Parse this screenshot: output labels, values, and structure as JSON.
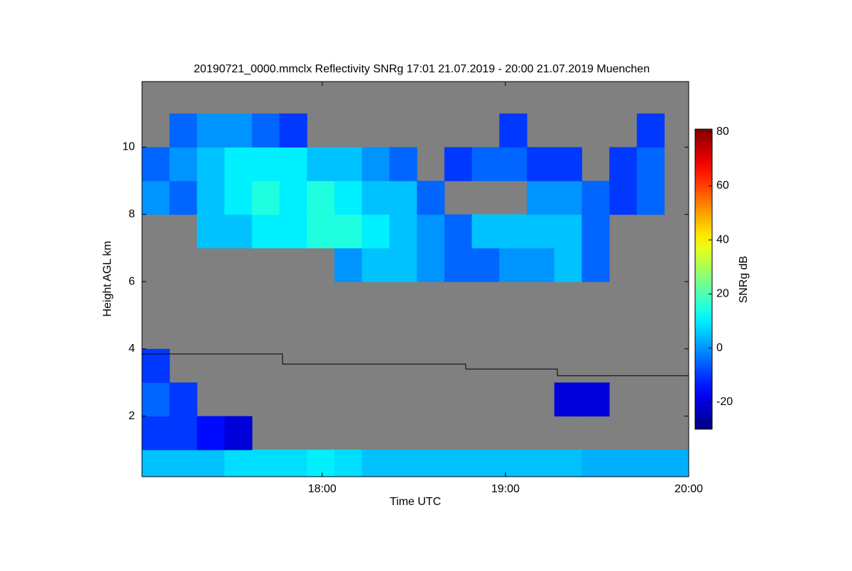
{
  "chart_data": {
    "type": "heatmap",
    "title": "20190721_0000.mmclx Reflectivity SNRg   17:01 21.07.2019 - 20:00 21.07.2019 Muenchen",
    "x_label": "Time UTC",
    "y_label": "Height AGL km",
    "colorbar_label": "SNRg dB",
    "colormap": "jet",
    "background": "#808080",
    "xlim": [
      1,
      180
    ],
    "xticks": [
      {
        "value": 60,
        "label": "18:00"
      },
      {
        "value": 120,
        "label": "19:00"
      },
      {
        "value": 180,
        "label": "20:00"
      }
    ],
    "ylim": [
      0.2,
      11.95
    ],
    "yticks": [
      2,
      4,
      6,
      8,
      10
    ],
    "clim": [
      -30,
      81
    ],
    "cticks": [
      -20,
      0,
      20,
      40,
      60,
      80
    ],
    "x_bins": [
      1,
      10,
      19,
      28,
      37,
      46,
      55,
      64,
      73,
      82,
      91,
      100,
      109,
      118,
      127,
      136,
      145,
      154,
      163,
      172,
      180
    ],
    "y_bins": [
      0.2,
      1,
      2,
      3,
      4,
      5,
      6,
      7,
      8,
      9,
      10,
      11,
      11.95
    ],
    "values": [
      [
        5,
        5,
        5,
        8,
        8,
        8,
        10,
        8,
        5,
        5,
        5,
        5,
        5,
        5,
        5,
        5,
        3,
        3,
        3,
        3
      ],
      [
        -10,
        -10,
        -15,
        -20,
        null,
        null,
        null,
        null,
        null,
        null,
        null,
        null,
        null,
        null,
        null,
        null,
        null,
        null,
        null,
        null
      ],
      [
        -5,
        -10,
        null,
        null,
        null,
        null,
        null,
        null,
        null,
        null,
        null,
        null,
        null,
        null,
        null,
        -20,
        -20,
        null,
        null,
        null
      ],
      [
        -10,
        null,
        null,
        null,
        null,
        null,
        null,
        null,
        null,
        null,
        null,
        null,
        null,
        null,
        null,
        null,
        null,
        null,
        null,
        null
      ],
      [
        null,
        null,
        null,
        null,
        null,
        null,
        null,
        null,
        null,
        null,
        null,
        null,
        null,
        null,
        null,
        null,
        null,
        null,
        null,
        null
      ],
      [
        null,
        null,
        null,
        null,
        null,
        null,
        null,
        null,
        null,
        null,
        null,
        null,
        null,
        null,
        null,
        null,
        null,
        null,
        null,
        null
      ],
      [
        null,
        null,
        null,
        null,
        null,
        null,
        null,
        0,
        5,
        5,
        0,
        -5,
        -5,
        0,
        0,
        5,
        -5,
        null,
        null,
        null
      ],
      [
        null,
        null,
        5,
        5,
        10,
        10,
        15,
        15,
        10,
        5,
        0,
        -5,
        5,
        5,
        5,
        5,
        -5,
        null,
        null,
        null
      ],
      [
        0,
        -5,
        5,
        10,
        15,
        10,
        15,
        10,
        5,
        5,
        -5,
        null,
        null,
        null,
        0,
        0,
        -5,
        -10,
        -5,
        null
      ],
      [
        -5,
        0,
        5,
        10,
        10,
        10,
        5,
        5,
        0,
        -5,
        null,
        -10,
        -5,
        -5,
        -10,
        -10,
        null,
        -10,
        -5,
        null
      ],
      [
        null,
        -5,
        0,
        0,
        -5,
        -10,
        null,
        null,
        null,
        null,
        null,
        null,
        null,
        -10,
        null,
        null,
        null,
        null,
        -10,
        null
      ],
      [
        null,
        null,
        null,
        null,
        null,
        null,
        null,
        null,
        null,
        null,
        null,
        null,
        null,
        null,
        null,
        null,
        null,
        null,
        null,
        null
      ]
    ],
    "line": {
      "color": "#000000",
      "x": [
        1,
        47,
        47,
        107,
        107,
        137,
        137,
        180
      ],
      "y": [
        3.85,
        3.85,
        3.55,
        3.55,
        3.4,
        3.4,
        3.2,
        3.2
      ]
    }
  }
}
